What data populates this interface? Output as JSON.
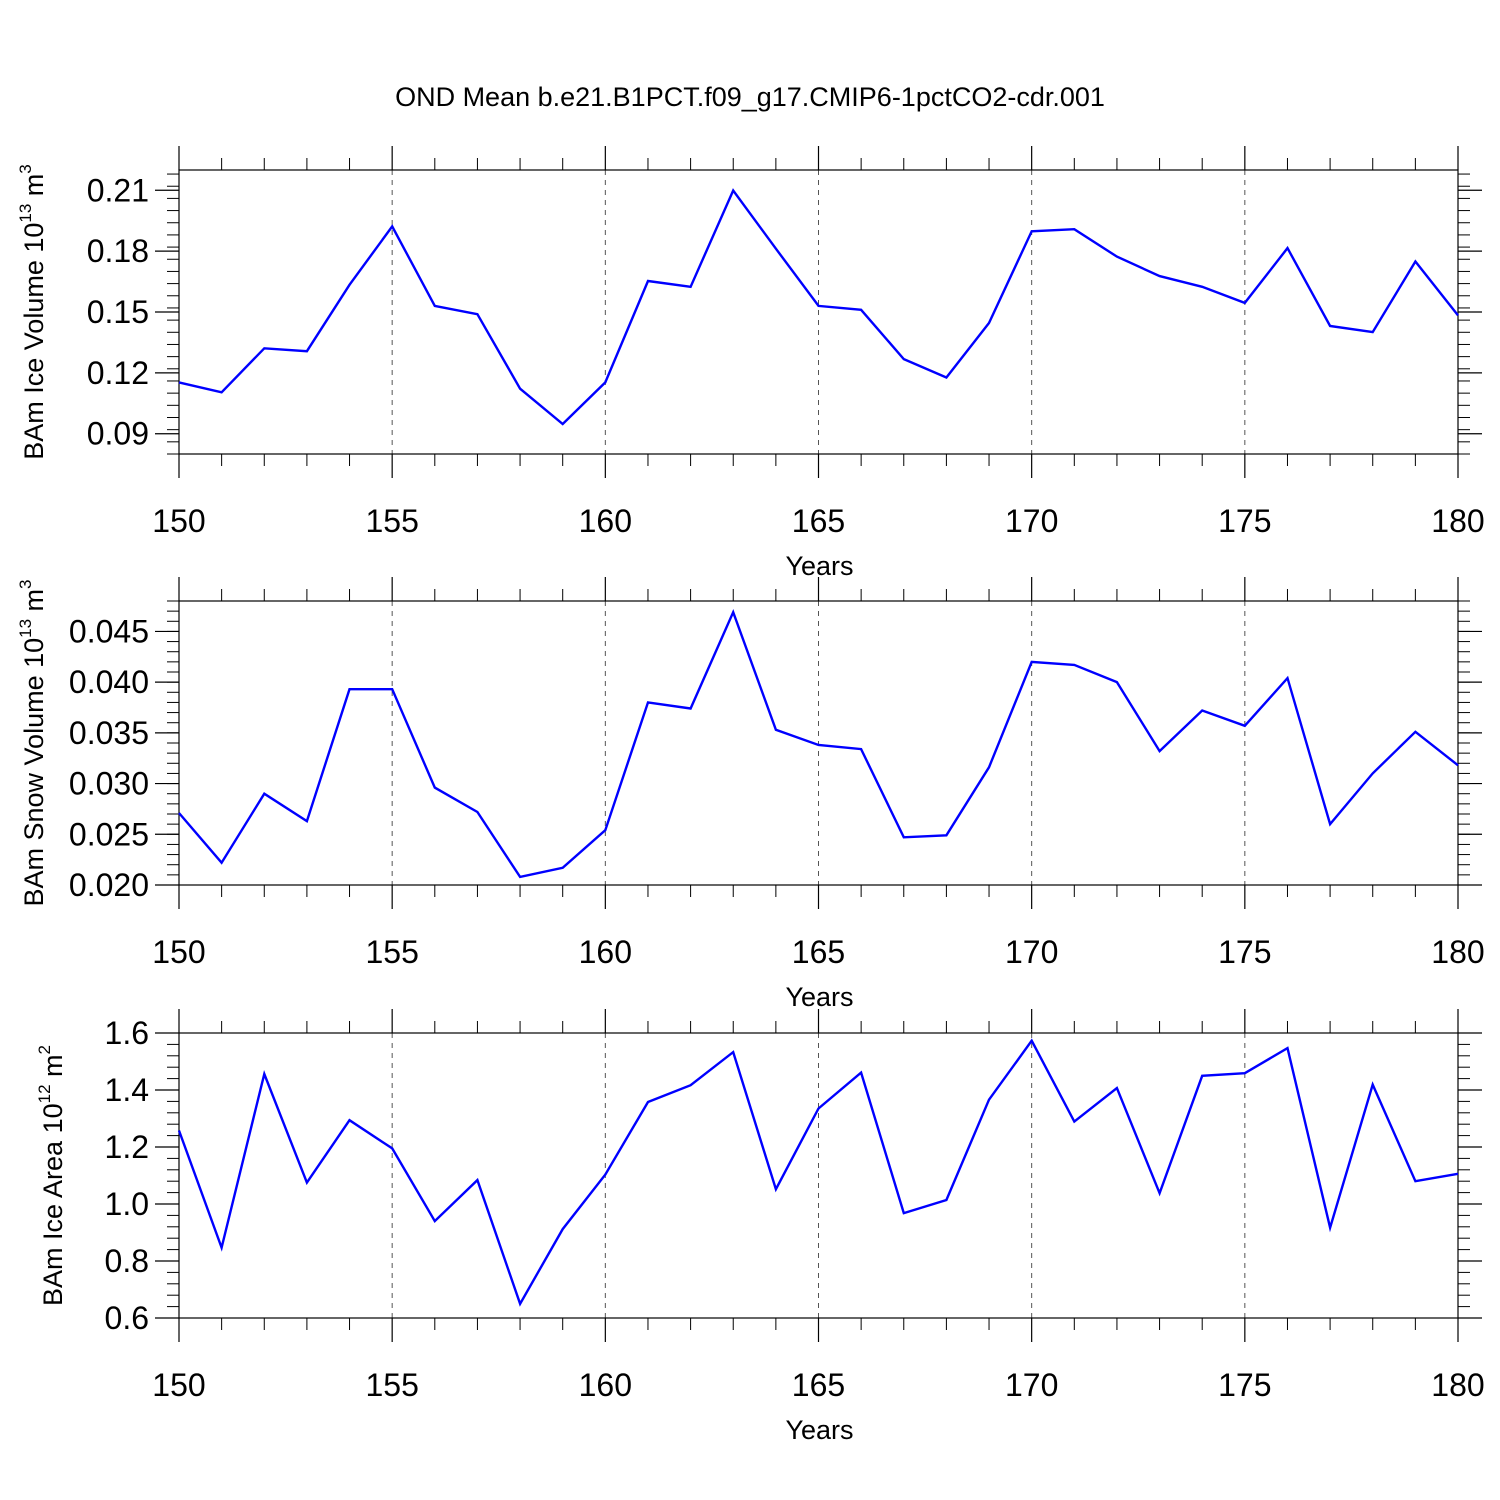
{
  "figure": {
    "title": "OND Mean b.e21.B1PCT.f09_g17.CMIP6-1pctCO2-cdr.001"
  },
  "chart_data": [
    {
      "type": "line",
      "ylabel": "BAm Ice Volume 10",
      "ylabel_exp": "13",
      "ylabel_unit": " m",
      "ylabel_unit_exp": "3",
      "xlabel": "Years",
      "xlim": [
        150,
        180
      ],
      "ylim": [
        0.08,
        0.22
      ],
      "yticks": [
        0.09,
        0.12,
        0.15,
        0.18,
        0.21
      ],
      "ytick_labels": [
        "0.09",
        "0.12",
        "0.15",
        "0.18",
        "0.21"
      ],
      "yminor_step": 0.006,
      "xticks": [
        150,
        155,
        160,
        165,
        170,
        175,
        180
      ],
      "xtick_labels": [
        "150",
        "155",
        "160",
        "165",
        "170",
        "175",
        "180"
      ],
      "grid": "vertical dashed at major x ticks",
      "series": [
        {
          "color": "#0000ff",
          "x": [
            150,
            151,
            152,
            153,
            154,
            155,
            156,
            157,
            158,
            159,
            160,
            161,
            162,
            163,
            164,
            165,
            166,
            167,
            168,
            169,
            170,
            171,
            172,
            173,
            174,
            175,
            176,
            177,
            178,
            179,
            180
          ],
          "y": [
            0.1153,
            0.1104,
            0.1321,
            0.1307,
            0.1634,
            0.1922,
            0.153,
            0.1489,
            0.1122,
            0.0948,
            0.1153,
            0.1653,
            0.1624,
            0.2099,
            0.1812,
            0.153,
            0.1511,
            0.1268,
            0.1177,
            0.1446,
            0.1898,
            0.1908,
            0.1773,
            0.1677,
            0.1624,
            0.1545,
            0.1815,
            0.1431,
            0.1401,
            0.1749,
            0.1483
          ]
        }
      ]
    },
    {
      "type": "line",
      "ylabel": "BAm Snow Volume 10",
      "ylabel_exp": "13",
      "ylabel_unit": " m",
      "ylabel_unit_exp": "3",
      "xlabel": "Years",
      "xlim": [
        150,
        180
      ],
      "ylim": [
        0.02,
        0.048
      ],
      "yticks": [
        0.02,
        0.025,
        0.03,
        0.035,
        0.04,
        0.045
      ],
      "ytick_labels": [
        "0.020",
        "0.025",
        "0.030",
        "0.035",
        "0.040",
        "0.045"
      ],
      "yminor_step": 0.001,
      "xticks": [
        150,
        155,
        160,
        165,
        170,
        175,
        180
      ],
      "xtick_labels": [
        "150",
        "155",
        "160",
        "165",
        "170",
        "175",
        "180"
      ],
      "grid": "vertical dashed at major x ticks",
      "series": [
        {
          "color": "#0000ff",
          "x": [
            150,
            151,
            152,
            153,
            154,
            155,
            156,
            157,
            158,
            159,
            160,
            161,
            162,
            163,
            164,
            165,
            166,
            167,
            168,
            169,
            170,
            171,
            172,
            173,
            174,
            175,
            176,
            177,
            178,
            179,
            180
          ],
          "y": [
            0.0271,
            0.0222,
            0.029,
            0.0263,
            0.0393,
            0.0393,
            0.0296,
            0.0272,
            0.0208,
            0.0217,
            0.0254,
            0.038,
            0.0374,
            0.0469,
            0.0353,
            0.0338,
            0.0334,
            0.0247,
            0.0249,
            0.0316,
            0.042,
            0.0417,
            0.04,
            0.0332,
            0.0372,
            0.0357,
            0.0404,
            0.026,
            0.031,
            0.0351,
            0.0318
          ]
        }
      ]
    },
    {
      "type": "line",
      "ylabel": "BAm Ice Area 10",
      "ylabel_exp": "12",
      "ylabel_unit": " m",
      "ylabel_unit_exp": "2",
      "xlabel": "Years",
      "xlim": [
        150,
        180
      ],
      "ylim": [
        0.6,
        1.6
      ],
      "yticks": [
        0.6,
        0.8,
        1.0,
        1.2,
        1.4,
        1.6
      ],
      "ytick_labels": [
        "0.6",
        "0.8",
        "1.0",
        "1.2",
        "1.4",
        "1.6"
      ],
      "yminor_step": 0.04,
      "xticks": [
        150,
        155,
        160,
        165,
        170,
        175,
        180
      ],
      "xtick_labels": [
        "150",
        "155",
        "160",
        "165",
        "170",
        "175",
        "180"
      ],
      "grid": "vertical dashed at major x ticks",
      "series": [
        {
          "color": "#0000ff",
          "x": [
            150,
            151,
            152,
            153,
            154,
            155,
            156,
            157,
            158,
            159,
            160,
            161,
            162,
            163,
            164,
            165,
            166,
            167,
            168,
            169,
            170,
            171,
            172,
            173,
            174,
            175,
            176,
            177,
            178,
            179,
            180
          ],
          "y": [
            1.258,
            0.847,
            1.456,
            1.075,
            1.294,
            1.195,
            0.94,
            1.084,
            0.65,
            0.912,
            1.103,
            1.358,
            1.417,
            1.533,
            1.052,
            1.335,
            1.461,
            0.968,
            1.014,
            1.366,
            1.573,
            1.289,
            1.407,
            1.038,
            1.45,
            1.459,
            1.547,
            0.917,
            1.419,
            1.08,
            1.106
          ]
        }
      ]
    }
  ]
}
